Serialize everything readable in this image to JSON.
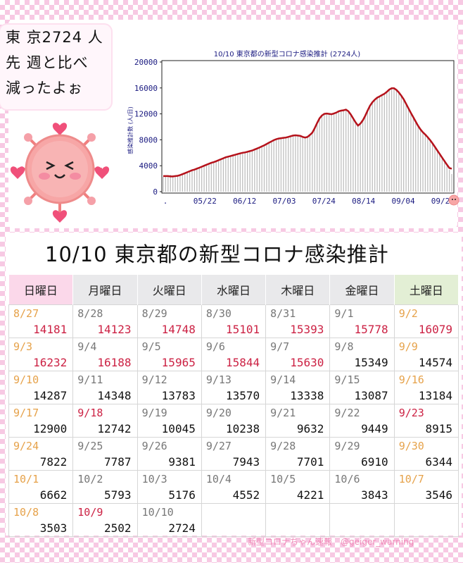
{
  "bubble": {
    "lines": [
      "東 京2724 人",
      "先 週と比べ",
      "減ったよぉ"
    ]
  },
  "chart_data": {
    "type": "bar",
    "title": "10/10 東京都の新型コロナ感染推計 (2724人)",
    "ylabel": "感染推計数 (人/日)",
    "ylim": [
      0,
      20000
    ],
    "yticks": [
      0,
      4000,
      8000,
      12000,
      16000,
      20000
    ],
    "xticks": [
      ".",
      "05/22",
      "06/12",
      "07/03",
      "07/24",
      "08/14",
      "09/04",
      "09/25"
    ],
    "grid": false,
    "series": [
      {
        "kind": "bar",
        "color": "#bbbbbb",
        "x_start": "05/01",
        "values": [
          2300,
          2400,
          2500,
          2600,
          2500,
          2400,
          2450,
          2550,
          2700,
          2900,
          3100,
          3200,
          3350,
          3400,
          3600,
          3750,
          3900,
          4050,
          4200,
          4300,
          4450,
          4550,
          4700,
          4850,
          5000,
          5150,
          5300,
          5400,
          5550,
          5600,
          5750,
          5850,
          5950,
          6000,
          6100,
          6150,
          6250,
          6350,
          6500,
          6600,
          6800,
          7000,
          7200,
          7400,
          7600,
          7800,
          7950,
          8100,
          8250,
          8300,
          8350,
          8400,
          8450,
          8550,
          8650,
          8700,
          8750,
          8650,
          8500,
          8350,
          8400,
          8700,
          9100,
          9800,
          10600,
          11300,
          11800,
          12000,
          12100,
          12000,
          11900,
          12050,
          12200,
          12400,
          12550,
          12650,
          12700,
          12400,
          11900,
          11300,
          10800,
          10200,
          10500,
          11000,
          11700,
          12500,
          13300,
          13900,
          14300,
          14600,
          14800,
          15000,
          15200,
          15500,
          15800,
          16000,
          15950,
          15700,
          15300,
          14800,
          14200,
          13500,
          12800,
          12000,
          11300,
          10600,
          10000,
          9400,
          9000,
          8700,
          8300,
          7900,
          7400,
          6900,
          6300,
          5700,
          5100,
          4500,
          3900,
          3400,
          2724
        ]
      },
      {
        "kind": "line",
        "color": "#b5121b",
        "x_start": "05/01",
        "values": [
          2400,
          2400,
          2400,
          2350,
          2350,
          2400,
          2450,
          2550,
          2700,
          2850,
          3000,
          3150,
          3300,
          3400,
          3550,
          3700,
          3850,
          4000,
          4150,
          4300,
          4450,
          4550,
          4700,
          4850,
          5000,
          5150,
          5300,
          5400,
          5500,
          5600,
          5700,
          5800,
          5900,
          6000,
          6050,
          6150,
          6250,
          6350,
          6500,
          6650,
          6800,
          6980,
          7150,
          7350,
          7550,
          7750,
          7950,
          8100,
          8200,
          8250,
          8300,
          8350,
          8450,
          8550,
          8650,
          8700,
          8650,
          8600,
          8450,
          8350,
          8450,
          8750,
          9100,
          9800,
          10600,
          11300,
          11750,
          12000,
          12050,
          12000,
          11950,
          12050,
          12200,
          12400,
          12500,
          12550,
          12650,
          12400,
          11900,
          11300,
          10700,
          10200,
          10500,
          11000,
          11700,
          12500,
          13250,
          13800,
          14200,
          14500,
          14700,
          14900,
          15100,
          15400,
          15750,
          15950,
          15950,
          15700,
          15300,
          14800,
          14250,
          13550,
          12850,
          12150,
          11500,
          10800,
          10150,
          9600,
          9150,
          8800,
          8400,
          7950,
          7450,
          6900,
          6350,
          5800,
          5250,
          4700,
          4150,
          3650,
          3546
        ]
      }
    ]
  },
  "calendar": {
    "title": "10/10 東京都の新型コロナ感染推計",
    "days": [
      "日曜日",
      "月曜日",
      "火曜日",
      "水曜日",
      "木曜日",
      "金曜日",
      "土曜日"
    ],
    "weeks": [
      [
        {
          "date": "8/27",
          "value": "14181",
          "red": true
        },
        {
          "date": "8/28",
          "value": "14123",
          "red": true
        },
        {
          "date": "8/29",
          "value": "14748",
          "red": true
        },
        {
          "date": "8/30",
          "value": "15101",
          "red": true
        },
        {
          "date": "8/31",
          "value": "15393",
          "red": true
        },
        {
          "date": "9/1",
          "value": "15778",
          "red": true
        },
        {
          "date": "9/2",
          "value": "16079",
          "red": true
        }
      ],
      [
        {
          "date": "9/3",
          "value": "16232",
          "red": true
        },
        {
          "date": "9/4",
          "value": "16188",
          "red": true
        },
        {
          "date": "9/5",
          "value": "15965",
          "red": true
        },
        {
          "date": "9/6",
          "value": "15844",
          "red": true
        },
        {
          "date": "9/7",
          "value": "15630",
          "red": true
        },
        {
          "date": "9/8",
          "value": "15349"
        },
        {
          "date": "9/9",
          "value": "14574"
        }
      ],
      [
        {
          "date": "9/10",
          "value": "14287"
        },
        {
          "date": "9/11",
          "value": "14348"
        },
        {
          "date": "9/12",
          "value": "13783"
        },
        {
          "date": "9/13",
          "value": "13570"
        },
        {
          "date": "9/14",
          "value": "13338"
        },
        {
          "date": "9/15",
          "value": "13087"
        },
        {
          "date": "9/16",
          "value": "13184"
        }
      ],
      [
        {
          "date": "9/17",
          "value": "12900"
        },
        {
          "date": "9/18",
          "value": "12742",
          "holiday": true
        },
        {
          "date": "9/19",
          "value": "10045"
        },
        {
          "date": "9/20",
          "value": "10238"
        },
        {
          "date": "9/21",
          "value": "9632"
        },
        {
          "date": "9/22",
          "value": "9449"
        },
        {
          "date": "9/23",
          "value": "8915",
          "holiday": true
        }
      ],
      [
        {
          "date": "9/24",
          "value": "7822"
        },
        {
          "date": "9/25",
          "value": "7787"
        },
        {
          "date": "9/26",
          "value": "9381"
        },
        {
          "date": "9/27",
          "value": "7943"
        },
        {
          "date": "9/28",
          "value": "7701"
        },
        {
          "date": "9/29",
          "value": "6910"
        },
        {
          "date": "9/30",
          "value": "6344"
        }
      ],
      [
        {
          "date": "10/1",
          "value": "6662"
        },
        {
          "date": "10/2",
          "value": "5793"
        },
        {
          "date": "10/3",
          "value": "5176"
        },
        {
          "date": "10/4",
          "value": "4552"
        },
        {
          "date": "10/5",
          "value": "4221"
        },
        {
          "date": "10/6",
          "value": "3843"
        },
        {
          "date": "10/7",
          "value": "3546"
        }
      ],
      [
        {
          "date": "10/8",
          "value": "3503"
        },
        {
          "date": "10/9",
          "value": "2502",
          "holiday": true
        },
        {
          "date": "10/10",
          "value": "2724"
        },
        {
          "date": "",
          "value": ""
        },
        {
          "date": "",
          "value": ""
        },
        {
          "date": "",
          "value": ""
        },
        {
          "date": "",
          "value": ""
        }
      ]
    ]
  },
  "footer": "新型コロナちゃん速報　@geiger_warning",
  "colors": {
    "accent_red": "#cc2244",
    "weekend_orange": "#e6a24a",
    "line": "#b5121b",
    "pink": "#f7c9e3"
  },
  "icons": [
    "virus-mascot-icon",
    "heart-icon",
    "corner-virus-icon"
  ]
}
